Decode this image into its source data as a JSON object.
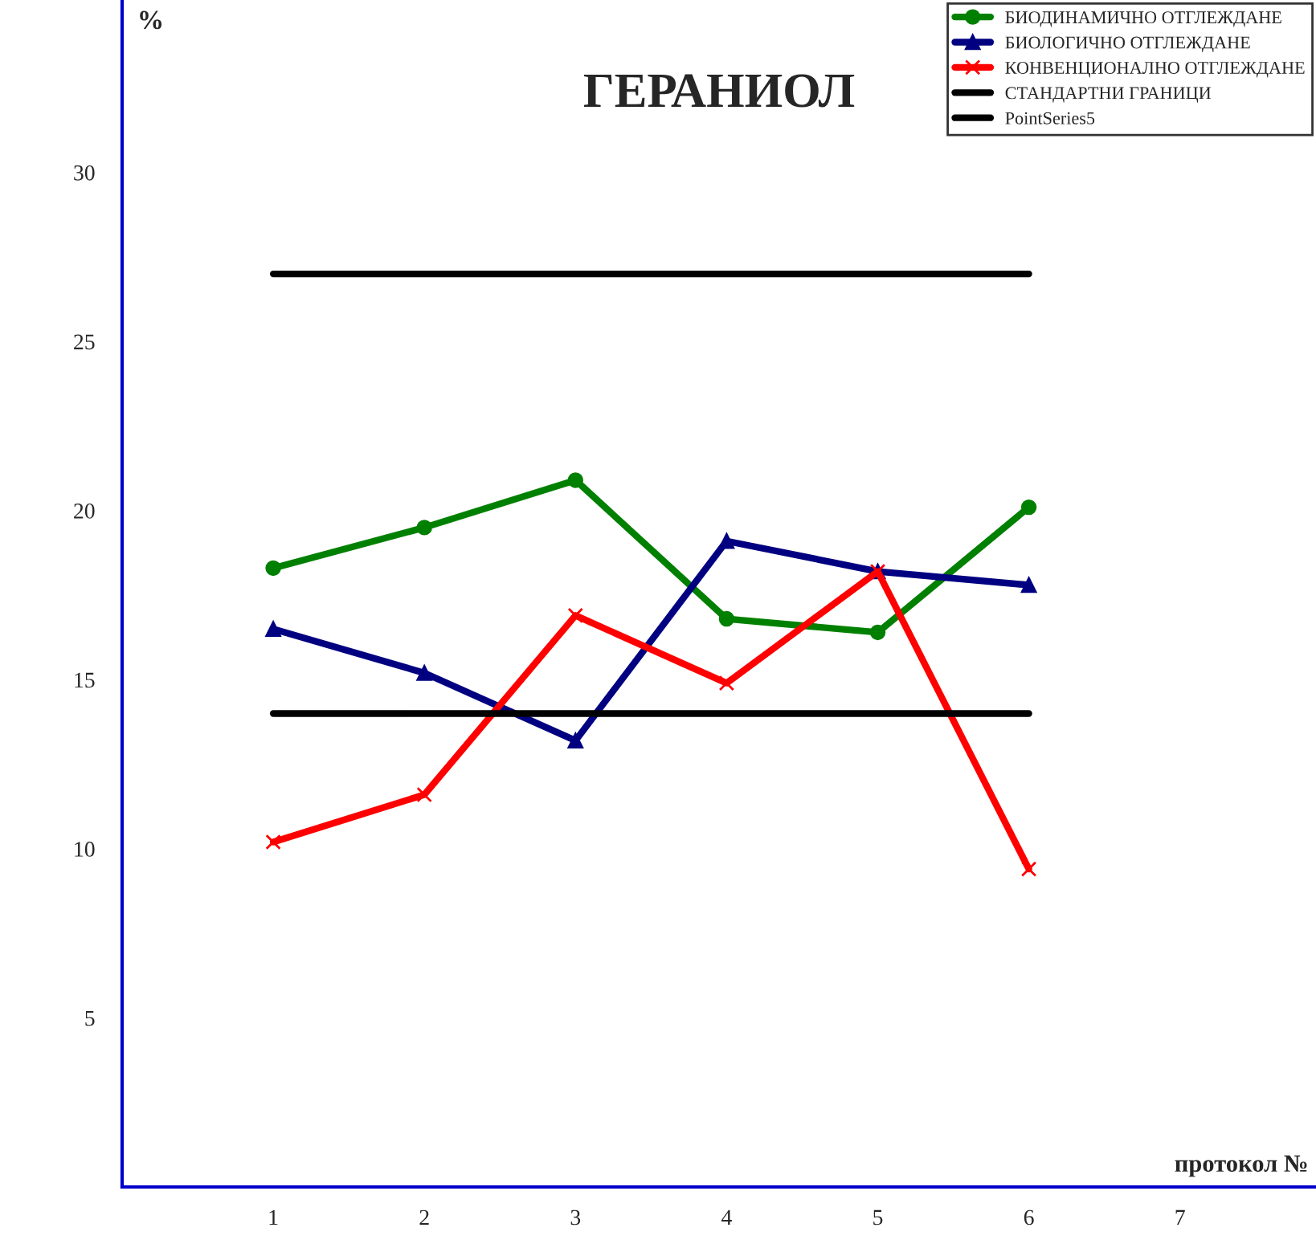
{
  "chart_data": {
    "type": "line",
    "title": "ГЕРАНИОЛ",
    "xlabel": "протокол №",
    "ylabel": "%",
    "x": [
      1,
      2,
      3,
      4,
      5,
      6
    ],
    "series": [
      {
        "name": "БИОДИНАМИЧНО ОТГЛЕЖДАНЕ",
        "color": "#008000",
        "marker": "circle",
        "values": [
          18.3,
          19.5,
          20.9,
          16.8,
          16.4,
          20.1
        ]
      },
      {
        "name": "БИОЛОГИЧНО ОТГЛЕЖДАНЕ",
        "color": "#000080",
        "marker": "triangle",
        "values": [
          16.5,
          15.2,
          13.2,
          19.1,
          18.2,
          17.8
        ]
      },
      {
        "name": "КОНВЕНЦИОНАЛНО ОТГЛЕЖДАНЕ",
        "color": "#ff0000",
        "marker": "cross",
        "values": [
          10.2,
          11.6,
          16.9,
          14.9,
          18.2,
          9.4
        ]
      },
      {
        "name": "СТАНДАРТНИ ГРАНИЦИ",
        "color": "#000000",
        "marker": "none",
        "values": [
          27.0,
          27.0,
          27.0,
          27.0,
          27.0,
          27.0
        ]
      },
      {
        "name": "PointSeries5",
        "color": "#000000",
        "marker": "none",
        "values": [
          14.0,
          14.0,
          14.0,
          14.0,
          14.0,
          14.0
        ]
      }
    ],
    "xlim": [
      0,
      7.9
    ],
    "ylim": [
      0,
      35.1
    ],
    "xticks": [
      1,
      2,
      3,
      4,
      5,
      6,
      7
    ],
    "yticks": [
      5,
      10,
      15,
      20,
      25,
      30
    ],
    "grid": false,
    "legend": "top right",
    "line_style": "solid"
  }
}
